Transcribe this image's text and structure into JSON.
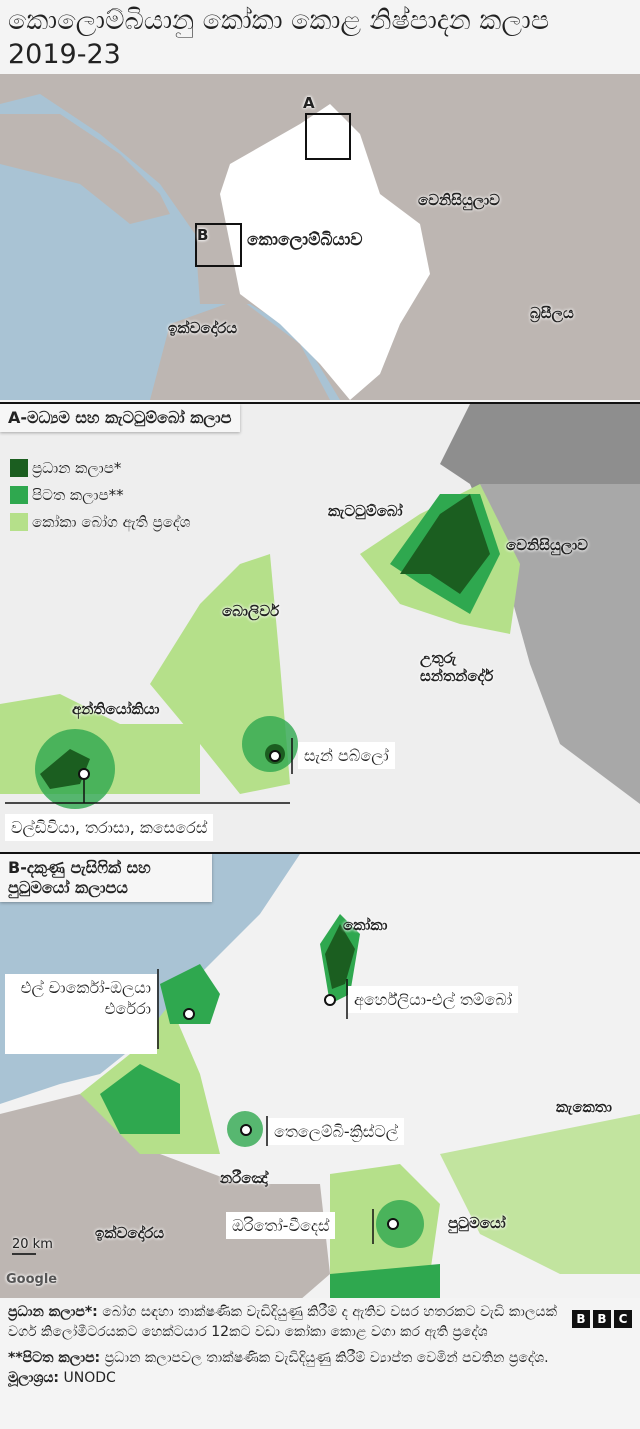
{
  "title": "කොලොම්බියානු කෝකා කොළ නිෂ්පාදන කලාප 2019-23",
  "overview": {
    "box_a": "A",
    "box_b": "B",
    "colombia": "කොලොම්බියාව",
    "venezuela": "වෙනිසියුලාව",
    "ecuador": "ඉක්වදෝරය",
    "brazil": "බ්‍රසීලය"
  },
  "panel_a": {
    "heading": "A-මධ්‍යම සහ කැටටුම්බෝ කලාප",
    "legend": [
      {
        "label": "ප්‍රධාන කලාප*",
        "color": "#1b5e20"
      },
      {
        "label": "පිටත කලාප**",
        "color": "#2fa84f"
      },
      {
        "label": "කෝකා බෝග ඇති ප්‍රදේශ",
        "color": "#b5e08a"
      }
    ],
    "labels": {
      "catatumbo": "කැටටුම්බෝ",
      "venezuela": "වෙනිසියුලාව",
      "bolivar": "බොලිවර්",
      "santander": "උතුරු සන්තන්දේර්",
      "antioquia": "අන්තියෝකියා",
      "san_pablo": "සැන් පබ්ලෝ",
      "valdivia": "වල්ඩිවියා, තරාසා, කසෙරෙස්"
    }
  },
  "panel_b": {
    "heading": "B-දකුණු පැසිෆික් සහ පුටුමයෝ කලාපය",
    "labels": {
      "cauca": "කෝකා",
      "charco": "එල් චාර්කෝ-ඔලයා එරේරා",
      "argelia": "අර්හේලියා-එල් තම්බෝ",
      "caqueta": "කැකෙතා",
      "telembi": "තෙලෙම්බි-ක්‍රිස්ටල්",
      "narino": "නරීඤෝ",
      "orito": "ඔරිතෝ-වීදෙස්",
      "putumayo": "පුටුමයෝ",
      "ecuador": "ඉක්වදෝරය"
    },
    "scale": "20 km",
    "attribution": "Google"
  },
  "footer": {
    "note1_bold": "ප්‍රධාන කලාප*:",
    "note1": " බෝග සඳහා තාක්ෂණික වැඩිදියුණු කිරීම් ද ඇතිව වසර හතරකට වැඩි කාලයක් වර්ග කිලෝමීටරයකට හෙක්ටයාර 12කට වඩා කෝකා කොළ වගා කර ඇති ප්‍රදේශ",
    "note2_bold": "**පිටත කලාප:",
    "note2": " ප්‍රධාන කලාපවල තාක්ෂණික වැඩිදියුණු කිරීම් ව්‍යාප්ත වෙමින් පවතින ප්‍රදේශ.",
    "source_bold": "මූලාශ්‍රය:",
    "source": " UNODC",
    "logo": "BBC"
  }
}
